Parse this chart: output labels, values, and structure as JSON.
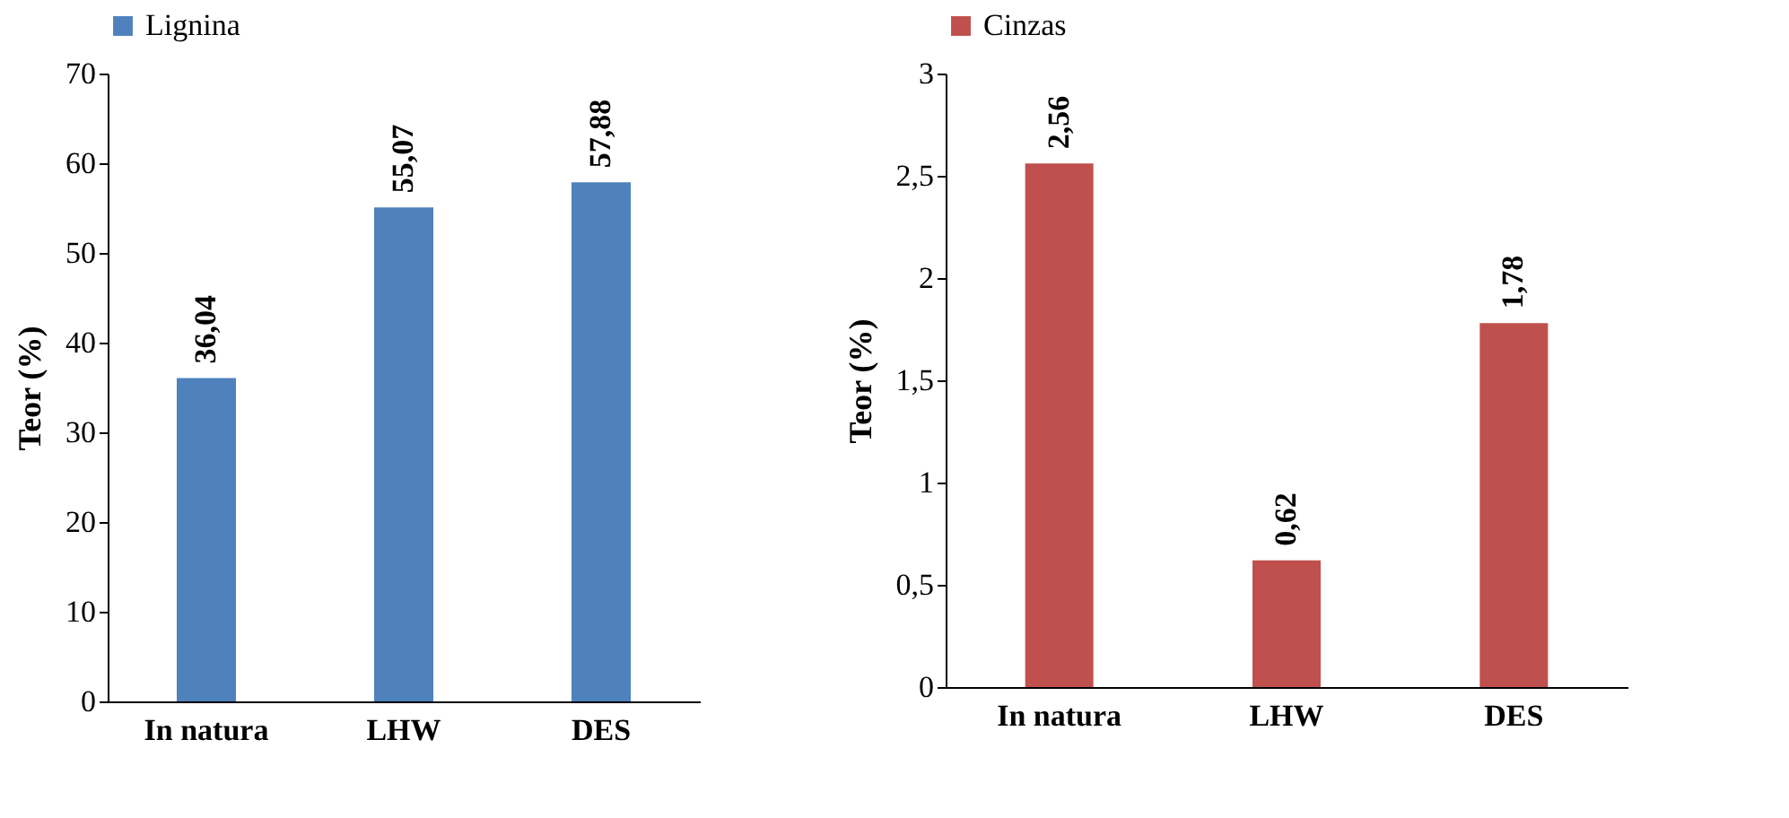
{
  "chart_data": [
    {
      "type": "bar",
      "ylabel": "Teor (%)",
      "categories": [
        "In natura",
        "LHW",
        "DES"
      ],
      "legend": "top",
      "series": [
        {
          "name": "Lignina",
          "color": "#4f81bd",
          "values": [
            36.04,
            55.07,
            57.88
          ],
          "value_labels": [
            "36,04",
            "55,07",
            "57,88"
          ]
        }
      ],
      "ylim": [
        0,
        70
      ],
      "yticks": [
        0,
        10,
        20,
        30,
        40,
        50,
        60,
        70
      ],
      "grid": false
    },
    {
      "type": "bar",
      "ylabel": "Teor (%)",
      "categories": [
        "In natura",
        "LHW",
        "DES"
      ],
      "legend": "top",
      "series": [
        {
          "name": "Cinzas",
          "color": "#c0504d",
          "values": [
            2.56,
            0.62,
            1.78
          ],
          "value_labels": [
            "2,56",
            "0,62",
            "1,78"
          ]
        }
      ],
      "ylim": [
        0,
        3
      ],
      "yticks": [
        0,
        {
          "value": 0.5,
          "label": "0,5"
        },
        1,
        {
          "value": 1.5,
          "label": "1,5"
        },
        2,
        {
          "value": 2.5,
          "label": "2,5"
        },
        3
      ],
      "grid": false
    }
  ]
}
